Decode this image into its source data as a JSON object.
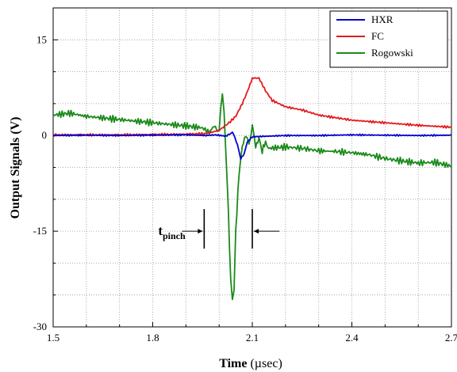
{
  "chart_data": {
    "type": "line",
    "title": "",
    "xlabel": "Time (µsec)",
    "xlabel_main": "Time",
    "xlabel_unit": "(µsec)",
    "ylabel": "Output Signals (V)",
    "xlim": [
      1.5,
      2.7
    ],
    "ylim": [
      -30,
      20
    ],
    "x_ticks": [
      1.5,
      1.8,
      2.1,
      2.4,
      2.7
    ],
    "x_tick_labels": [
      "1.5",
      "1.8",
      "2.1",
      "2.4",
      "2.7"
    ],
    "y_ticks": [
      -30,
      -15,
      0,
      15
    ],
    "y_tick_labels": [
      "-30",
      "-15",
      "0",
      "15"
    ],
    "grid": true,
    "legend_position": "top-right",
    "series": [
      {
        "name": "HXR",
        "color": "#0000cc",
        "points": [
          [
            1.5,
            0.0
          ],
          [
            1.6,
            0.05
          ],
          [
            1.7,
            0.0
          ],
          [
            1.8,
            0.05
          ],
          [
            1.9,
            0.1
          ],
          [
            1.96,
            0.0
          ],
          [
            1.99,
            0.1
          ],
          [
            2.02,
            -0.1
          ],
          [
            2.035,
            0.3
          ],
          [
            2.04,
            0.5
          ],
          [
            2.045,
            0.1
          ],
          [
            2.055,
            -1.5
          ],
          [
            2.065,
            -3.6
          ],
          [
            2.075,
            -3.0
          ],
          [
            2.085,
            -1.0
          ],
          [
            2.1,
            -0.2
          ],
          [
            2.2,
            0.0
          ],
          [
            2.3,
            0.0
          ],
          [
            2.4,
            0.1
          ],
          [
            2.5,
            0.05
          ],
          [
            2.6,
            0.0
          ],
          [
            2.7,
            0.05
          ]
        ]
      },
      {
        "name": "FC",
        "color": "#e31a1c",
        "points": [
          [
            1.5,
            0.1
          ],
          [
            1.7,
            0.1
          ],
          [
            1.9,
            0.2
          ],
          [
            1.96,
            0.3
          ],
          [
            2.0,
            0.8
          ],
          [
            2.03,
            2.0
          ],
          [
            2.05,
            3.0
          ],
          [
            2.07,
            5.0
          ],
          [
            2.09,
            7.5
          ],
          [
            2.1,
            9.0
          ],
          [
            2.12,
            9.0
          ],
          [
            2.14,
            7.0
          ],
          [
            2.16,
            5.5
          ],
          [
            2.2,
            4.5
          ],
          [
            2.25,
            4.0
          ],
          [
            2.3,
            3.2
          ],
          [
            2.35,
            2.8
          ],
          [
            2.4,
            2.4
          ],
          [
            2.5,
            2.0
          ],
          [
            2.6,
            1.6
          ],
          [
            2.7,
            1.3
          ]
        ]
      },
      {
        "name": "Rogowski",
        "color": "#1a8a1a",
        "points": [
          [
            1.5,
            3.2
          ],
          [
            1.55,
            3.5
          ],
          [
            1.6,
            3.0
          ],
          [
            1.7,
            2.5
          ],
          [
            1.8,
            2.0
          ],
          [
            1.9,
            1.5
          ],
          [
            1.95,
            1.2
          ],
          [
            1.97,
            0.5
          ],
          [
            1.985,
            1.5
          ],
          [
            2.0,
            0.5
          ],
          [
            2.005,
            4.5
          ],
          [
            2.01,
            6.5
          ],
          [
            2.015,
            3.5
          ],
          [
            2.02,
            -2.0
          ],
          [
            2.028,
            -12.0
          ],
          [
            2.035,
            -23.0
          ],
          [
            2.04,
            -25.5
          ],
          [
            2.045,
            -24.0
          ],
          [
            2.05,
            -15.0
          ],
          [
            2.06,
            -6.0
          ],
          [
            2.07,
            -2.0
          ],
          [
            2.08,
            0.2
          ],
          [
            2.09,
            -1.5
          ],
          [
            2.1,
            1.5
          ],
          [
            2.11,
            -1.5
          ],
          [
            2.12,
            -0.8
          ],
          [
            2.13,
            -2.5
          ],
          [
            2.14,
            -1.0
          ],
          [
            2.15,
            -2.0
          ],
          [
            2.2,
            -1.8
          ],
          [
            2.25,
            -2.0
          ],
          [
            2.3,
            -2.4
          ],
          [
            2.35,
            -2.5
          ],
          [
            2.4,
            -2.7
          ],
          [
            2.45,
            -3.0
          ],
          [
            2.5,
            -3.6
          ],
          [
            2.55,
            -4.0
          ],
          [
            2.6,
            -4.3
          ],
          [
            2.65,
            -4.2
          ],
          [
            2.7,
            -4.8
          ]
        ]
      }
    ],
    "annotation": {
      "text_main": "t",
      "text_sub": "pinch",
      "start_x": 1.955,
      "end_x": 2.1,
      "y": -15
    }
  }
}
